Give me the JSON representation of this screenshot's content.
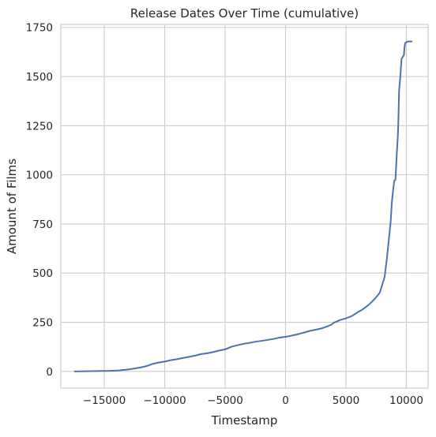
{
  "chart_data": {
    "type": "line",
    "title": "Release Dates Over Time (cumulative)",
    "xlabel": "Timestamp",
    "ylabel": "Amount of Films",
    "xlim": [
      -18600,
      11800
    ],
    "ylim": [
      -85,
      1765
    ],
    "x_ticks": [
      -15000,
      -10000,
      -5000,
      0,
      5000,
      10000
    ],
    "x_tick_labels": [
      "−15000",
      "−10000",
      "−5000",
      "0",
      "5000",
      "10000"
    ],
    "y_ticks": [
      0,
      250,
      500,
      750,
      1000,
      1250,
      1500,
      1750
    ],
    "y_tick_labels": [
      "0",
      "250",
      "500",
      "750",
      "1000",
      "1250",
      "1500",
      "1750"
    ],
    "grid": true,
    "color": "#4c72b0",
    "series": [
      {
        "x": [
          -17500,
          -16500,
          -15500,
          -14500,
          -13800,
          -13500,
          -13000,
          -12500,
          -12000,
          -11500,
          -11000,
          -10500,
          -10000,
          -9500,
          -9000,
          -8500,
          -8000,
          -7500,
          -7000,
          -6500,
          -6000,
          -5500,
          -5000,
          -4500,
          -4000,
          -3500,
          -3000,
          -2500,
          -2000,
          -1500,
          -1000,
          -500,
          0,
          500,
          1000,
          1500,
          2000,
          2500,
          3000,
          3500,
          3800,
          4000,
          4200,
          4500,
          5000,
          5500,
          5800,
          6000,
          6300,
          6600,
          7000,
          7400,
          7800,
          8000,
          8200,
          8300,
          8400,
          8500,
          8600,
          8700,
          8800,
          8900,
          9000,
          9100,
          9200,
          9300,
          9350,
          9400,
          9500,
          9600,
          9700,
          9750,
          9800,
          9850,
          9900,
          10000,
          10100,
          10150,
          10200,
          10300,
          10400,
          10500
        ],
        "y": [
          0,
          1,
          2,
          3,
          5,
          7,
          10,
          15,
          20,
          27,
          38,
          45,
          50,
          57,
          62,
          68,
          74,
          80,
          88,
          92,
          98,
          106,
          112,
          125,
          133,
          140,
          145,
          151,
          155,
          160,
          165,
          172,
          176,
          182,
          189,
          197,
          206,
          212,
          219,
          230,
          238,
          248,
          253,
          261,
          270,
          282,
          294,
          302,
          312,
          325,
          345,
          370,
          400,
          440,
          480,
          530,
          580,
          640,
          700,
          760,
          860,
          920,
          970,
          975,
          1100,
          1200,
          1300,
          1430,
          1500,
          1590,
          1600,
          1605,
          1610,
          1650,
          1670,
          1675,
          1678,
          1678,
          1678,
          1678,
          1678,
          1678
        ]
      }
    ]
  }
}
